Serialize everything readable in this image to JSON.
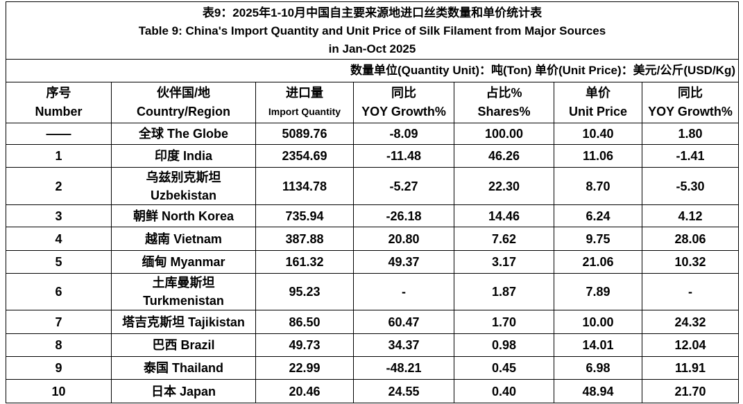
{
  "header": {
    "title_zh": "表9：2025年1-10月中国自主要来源地进口丝类数量和单价统计表",
    "title_en": "Table 9: China's Import Quantity and Unit Price of Silk Filament from Major Sources\nin Jan-Oct 2025",
    "units": "数量单位(Quantity Unit)：吨(Ton)  单价(Unit Price)：美元/公斤(USD/Kg)"
  },
  "table": {
    "columns": [
      [
        "序号",
        "Number"
      ],
      [
        "伙伴国/地",
        "Country/Region"
      ],
      [
        "进口量",
        "Import Quantity"
      ],
      [
        "同比",
        "YOY Growth%"
      ],
      [
        "占比%",
        "Shares%"
      ],
      [
        "单价",
        "Unit Price"
      ],
      [
        "同比",
        "YOY Growth%"
      ]
    ],
    "rows": [
      [
        "——",
        "全球 The Globe",
        "5089.76",
        "-8.09",
        "100.00",
        "10.40",
        "1.80"
      ],
      [
        "1",
        "印度 India",
        "2354.69",
        "-11.48",
        "46.26",
        "11.06",
        "-1.41"
      ],
      [
        "2",
        "乌兹别克斯坦\nUzbekistan",
        "1134.78",
        "-5.27",
        "22.30",
        "8.70",
        "-5.30"
      ],
      [
        "3",
        "朝鲜  North Korea",
        "735.94",
        "-26.18",
        "14.46",
        "6.24",
        "4.12"
      ],
      [
        "4",
        "越南 Vietnam",
        "387.88",
        "20.80",
        "7.62",
        "9.75",
        "28.06"
      ],
      [
        "5",
        "缅甸 Myanmar",
        "161.32",
        "49.37",
        "3.17",
        "21.06",
        "10.32"
      ],
      [
        "6",
        "土库曼斯坦\nTurkmenistan",
        "95.23",
        "-",
        "1.87",
        "7.89",
        "-"
      ],
      [
        "7",
        "塔吉克斯坦 Tajikistan",
        "86.50",
        "60.47",
        "1.70",
        "10.00",
        "24.32"
      ],
      [
        "8",
        "巴西 Brazil",
        "49.73",
        "34.37",
        "0.98",
        "14.01",
        "12.04"
      ],
      [
        "9",
        "泰国 Thailand",
        "22.99",
        "-48.21",
        "0.45",
        "6.98",
        "11.91"
      ],
      [
        "10",
        "日本 Japan",
        "20.46",
        "24.55",
        "0.40",
        "48.94",
        "21.70"
      ]
    ]
  }
}
